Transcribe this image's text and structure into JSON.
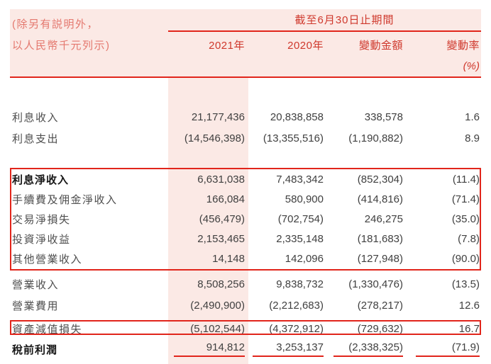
{
  "header": {
    "note_line1": "(除另有説明外，",
    "note_line2": "以人民幣千元列示)",
    "period_title": "截至6月30日止期間",
    "columns": [
      "2021年",
      "2020年",
      "變動金額",
      "變動率"
    ],
    "rate_unit": "(%)"
  },
  "rows": [
    {
      "label": "利息收入",
      "y2021": "21,177,436",
      "y2020": "20,838,858",
      "change": "338,578",
      "rate": "1.6"
    },
    {
      "label": "利息支出",
      "y2021": "(14,546,398)",
      "y2020": "(13,355,516)",
      "change": "(1,190,882)",
      "rate": "8.9"
    },
    {
      "label": "利息淨收入",
      "y2021": "6,631,038",
      "y2020": "7,483,342",
      "change": "(852,304)",
      "rate": "(11.4)"
    },
    {
      "label": "手續費及佣金淨收入",
      "y2021": "166,084",
      "y2020": "580,900",
      "change": "(414,816)",
      "rate": "(71.4)"
    },
    {
      "label": "交易淨損失",
      "y2021": "(456,479)",
      "y2020": "(702,754)",
      "change": "246,275",
      "rate": "(35.0)"
    },
    {
      "label": "投資淨收益",
      "y2021": "2,153,465",
      "y2020": "2,335,148",
      "change": "(181,683)",
      "rate": "(7.8)"
    },
    {
      "label": "其他營業收入",
      "y2021": "14,148",
      "y2020": "142,096",
      "change": "(127,948)",
      "rate": "(90.0)"
    },
    {
      "label": "營業收入",
      "y2021": "8,508,256",
      "y2020": "9,838,732",
      "change": "(1,330,476)",
      "rate": "(13.5)"
    },
    {
      "label": "營業費用",
      "y2021": "(2,490,900)",
      "y2020": "(2,212,683)",
      "change": "(278,217)",
      "rate": "12.6"
    },
    {
      "label": "資產減值損失",
      "y2021": "(5,102,544)",
      "y2020": "(4,372,912)",
      "change": "(729,632)",
      "rate": "16.7"
    },
    {
      "label": "稅前利潤",
      "y2021": "914,812",
      "y2020": "3,253,137",
      "change": "(2,338,325)",
      "rate": "(71.9)"
    }
  ],
  "colors": {
    "accent_red": "#e1251b",
    "header_text_red": "#cf382c",
    "note_text_red": "#e4786e",
    "pink_background": "#fbe9e5"
  }
}
